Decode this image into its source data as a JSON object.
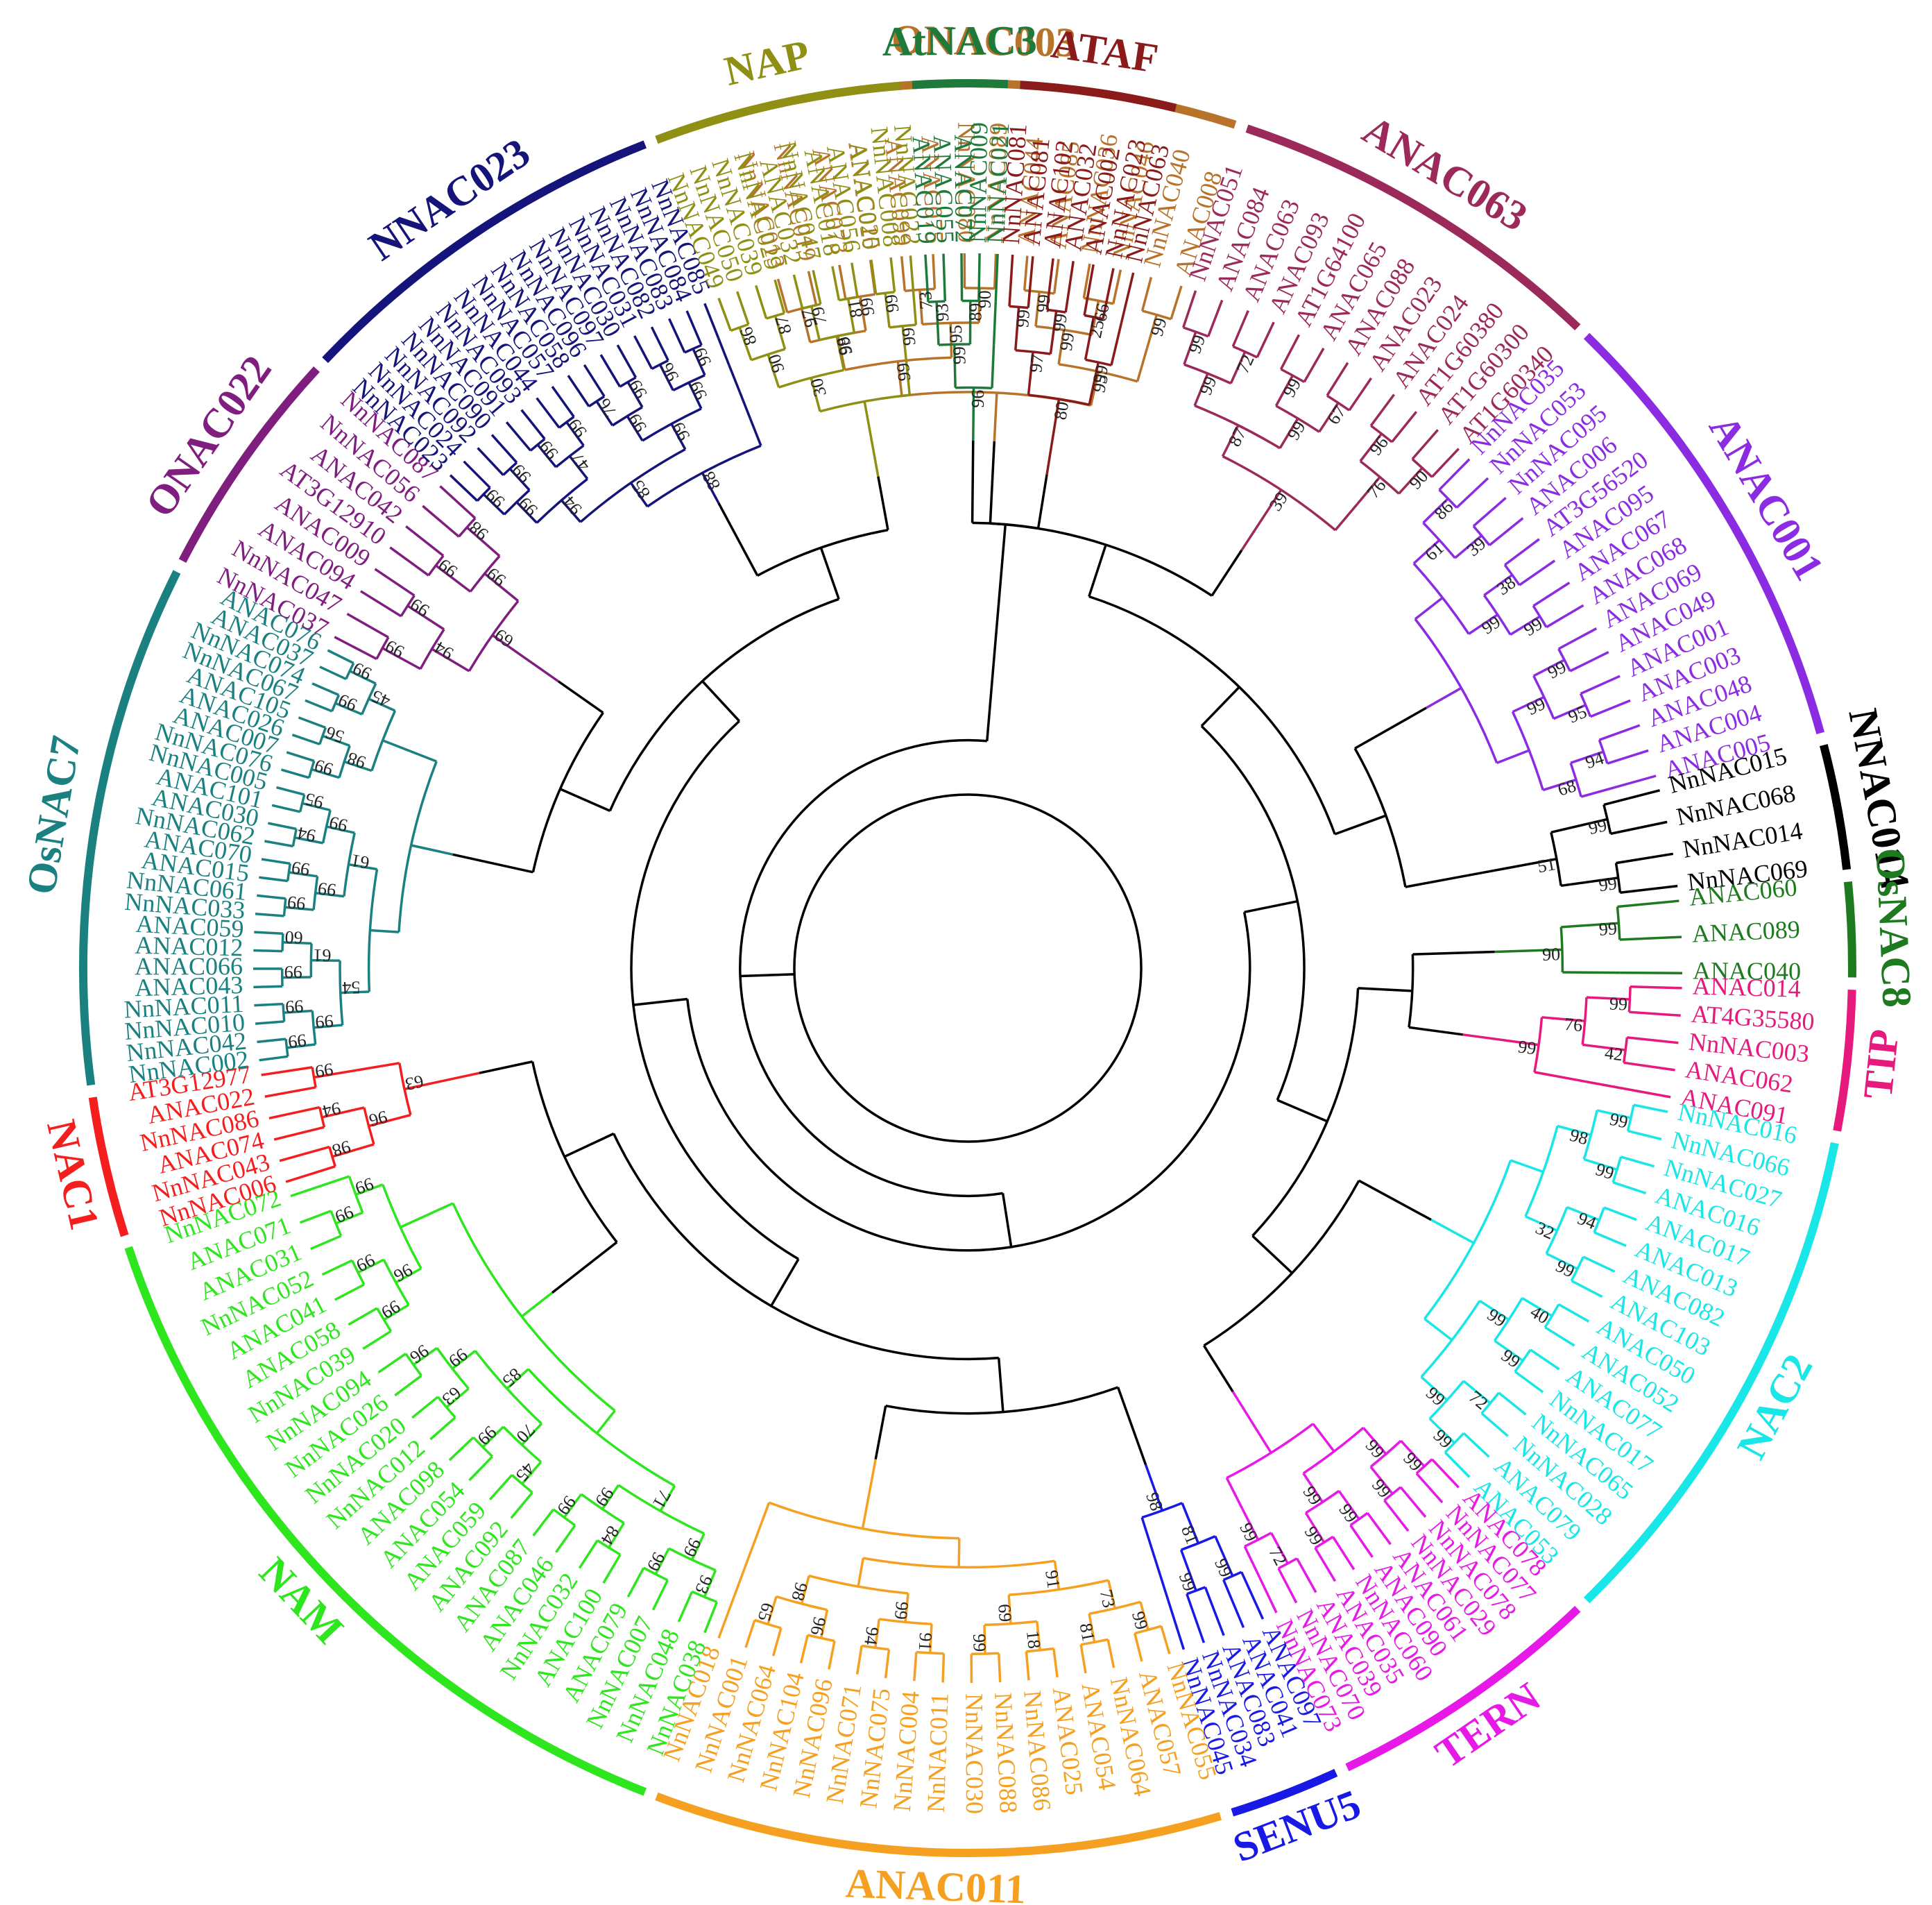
{
  "clades": [
    {
      "name": "ONAC003",
      "color": "#b8732b",
      "start": -16,
      "end": 18,
      "leaves": [
        "NnNAC013",
        "NnNAC019",
        "ANAC073",
        "ANAC010",
        "ANAC099",
        "ANAC075",
        "NnNAC080",
        "NnNAC089",
        "ANAC044",
        "ANAC085",
        "NnNAC036",
        "NnNAC046",
        "NnNAC040",
        "ANAC008"
      ],
      "boots": [
        "97",
        "99",
        "73",
        "90",
        "99",
        "66",
        "99",
        "99",
        "95",
        "99",
        "99",
        "95"
      ]
    },
    {
      "name": "ANAC063",
      "color": "#9b2a5a",
      "start": 18,
      "end": 44,
      "leaves": [
        "NnNAC051",
        "ANAC084",
        "ANAC063",
        "ANAC093",
        "AT1G64100",
        "ANAC065",
        "ANAC088",
        "ANAC023",
        "ANAC024",
        "AT1G60380",
        "AT1G60300",
        "AT1G60340"
      ],
      "boots": [
        "99",
        "72",
        "99",
        "67",
        "96",
        "90",
        "99",
        "99",
        "76",
        "87",
        "39"
      ]
    },
    {
      "name": "ANAC001",
      "color": "#8b2be2",
      "start": 44,
      "end": 75,
      "leaves": [
        "NnNAC035",
        "NnNAC053",
        "NnNAC095",
        "ANAC006",
        "AT3G56520",
        "ANAC095",
        "ANAC067",
        "ANAC068",
        "ANAC069",
        "ANAC049",
        "ANAC001",
        "ANAC003",
        "ANAC048",
        "ANAC004",
        "ANAC005"
      ],
      "boots": [
        "86",
        "39",
        "38",
        "99",
        "99",
        "95",
        "94",
        "61",
        "99",
        "99",
        "68"
      ]
    },
    {
      "name": "NNAC014",
      "color": "#000000",
      "start": 75,
      "end": 84,
      "leaves": [
        "NnNAC015",
        "NnNAC068",
        "NnNAC014",
        "NnNAC069"
      ],
      "boots": [
        "99",
        "99",
        "51"
      ]
    },
    {
      "name": "OsNAC8",
      "color": "#1e7a1e",
      "start": 84,
      "end": 91,
      "leaves": [
        "ANAC060",
        "ANAC089",
        "ANAC040"
      ],
      "boots": [
        "99",
        "90"
      ]
    },
    {
      "name": "TIP",
      "color": "#e6197d",
      "start": 91,
      "end": 101,
      "leaves": [
        "ANAC014",
        "AT4G35580",
        "NnNAC003",
        "ANAC062",
        "ANAC091"
      ],
      "boots": [
        "99",
        "42",
        "76",
        "99"
      ]
    },
    {
      "name": "NAC2",
      "color": "#19e6e6",
      "start": 101,
      "end": 136,
      "leaves": [
        "NnNAC016",
        "NnNAC066",
        "NnNAC027",
        "ANAC016",
        "ANAC017",
        "ANAC013",
        "ANAC082",
        "ANAC103",
        "ANAC050",
        "ANAC052",
        "ANAC077",
        "NnNAC017",
        "NnNAC065",
        "NnNAC028",
        "ANAC079",
        "ANAC053"
      ],
      "boots": [
        "99",
        "99",
        "94",
        "99",
        "40",
        "99",
        "72",
        "99",
        "98",
        "32",
        "99",
        "99"
      ]
    },
    {
      "name": "TERN",
      "color": "#e619e6",
      "start": 136,
      "end": 155,
      "leaves": [
        "ANAC078",
        "NnNAC077",
        "NnNAC078",
        "NnNAC029",
        "ANAC061",
        "ANAC090",
        "NnNAC060",
        "ANAC035",
        "ANAC039",
        "NnNAC070",
        "NnNAC073"
      ],
      "boots": [
        "99",
        "99",
        "99",
        "99",
        "72",
        "99",
        "99",
        "99"
      ]
    },
    {
      "name": "SENU5",
      "color": "#1919e6",
      "start": 155,
      "end": 163,
      "leaves": [
        "ANAC097",
        "ANAC041",
        "ANAC083",
        "NnNAC034",
        "NnNAC045"
      ],
      "boots": [
        "99",
        "99",
        "81",
        "98"
      ]
    },
    {
      "name": "ANAC011",
      "color": "#f5a020",
      "start": 163,
      "end": 201,
      "leaves": [
        "NnNAC055",
        "ANAC057",
        "NnNAC064",
        "ANAC054",
        "ANAC025",
        "NnNAC086",
        "NnNAC088",
        "NnNAC030",
        "NnNAC011",
        "NnNAC004",
        "NnNAC075",
        "NnNAC071",
        "NnNAC096",
        "NnNAC104",
        "NnNAC064",
        "NnNAC001",
        "NnNAC018"
      ],
      "boots": [
        "99",
        "81",
        "18",
        "99",
        "91",
        "94",
        "96",
        "65",
        "73",
        "69",
        "99",
        "98",
        "91"
      ]
    },
    {
      "name": "NAM",
      "color": "#2ee61e",
      "start": 201,
      "end": 252,
      "leaves": [
        "NnNAC038",
        "NnNAC048",
        "NnNAC007",
        "ANAC079",
        "ANAC100",
        "NnNAC032",
        "ANAC046",
        "ANAC087",
        "ANAC092",
        "ANAC059",
        "ANAC054",
        "ANAC098",
        "NnNAC012",
        "NnNAC020",
        "NnNAC026",
        "NnNAC094",
        "NnNAC039",
        "ANAC058",
        "ANAC041",
        "NnNAC052",
        "ANAC031",
        "ANAC071",
        "NnNAC072"
      ],
      "boots": [
        "93",
        "99",
        "84",
        "99",
        "45",
        "99",
        "63",
        "96",
        "99",
        "99",
        "99",
        "99",
        "99",
        "70",
        "99",
        "96",
        "99",
        "71",
        "85"
      ]
    },
    {
      "name": "NAC1",
      "color": "#f51e1e",
      "start": 252,
      "end": 262,
      "leaves": [
        "NnNAC006",
        "NnNAC043",
        "ANAC074",
        "NnNAC086",
        "ANAC022",
        "AT3G12977"
      ],
      "boots": [
        "98",
        "94",
        "99",
        "96",
        "63"
      ]
    },
    {
      "name": "OsNAC7",
      "color": "#1a8080",
      "start": 262,
      "end": 297,
      "leaves": [
        "NnNAC002",
        "NnNAC042",
        "NnNAC010",
        "NnNAC011",
        "ANAC043",
        "ANAC066",
        "ANAC012",
        "ANAC059",
        "NnNAC033",
        "NnNAC061",
        "ANAC015",
        "ANAC070",
        "NnNAC062",
        "ANAC030",
        "ANAC101",
        "NnNAC005",
        "NnNAC076",
        "ANAC007",
        "ANAC026",
        "ANAC105",
        "NnNAC067",
        "NnNAC074",
        "ANAC037",
        "ANAC076"
      ],
      "boots": [
        "99",
        "99",
        "99",
        "60",
        "99",
        "99",
        "94",
        "95",
        "99",
        "56",
        "99",
        "99",
        "99",
        "61",
        "99",
        "99",
        "98",
        "45",
        "54",
        "61"
      ]
    },
    {
      "name": "ONAC022",
      "color": "#801e80",
      "start": 297,
      "end": 313,
      "leaves": [
        "NnNAC037",
        "NnNAC047",
        "ANAC094",
        "ANAC009",
        "AT3G12910",
        "ANAC042",
        "NnNAC056",
        "NnNAC087"
      ],
      "boots": [
        "99",
        "99",
        "99",
        "98",
        "94",
        "99",
        "69"
      ]
    },
    {
      "name": "NNAC023",
      "color": "#14147a",
      "start": 313,
      "end": 339,
      "leaves": [
        "NnNAC023",
        "NnNAC024",
        "NnNAC092",
        "NnNAC090",
        "NnNAC091",
        "NnNAC093",
        "NnNAC044",
        "NnNAC057",
        "NnNAC058",
        "NnNAC096",
        "NnNAC097",
        "NnNAC030",
        "NnNAC031",
        "NnNAC082",
        "NnNAC083",
        "NnNAC084",
        "NnNAC085"
      ],
      "boots": [
        "99",
        "99",
        "99",
        "99",
        "76",
        "99",
        "96",
        "99",
        "99",
        "47",
        "99",
        "99",
        "94",
        "99",
        "85",
        "88"
      ]
    },
    {
      "name": "NAP",
      "color": "#8f8f14",
      "start": 339,
      "end": 356,
      "leaves": [
        "NnNAC049",
        "NnNAC050",
        "NnNAC039",
        "NnNAC029",
        "ANAC032",
        "NnNAC047",
        "ANAC018",
        "ANAC056",
        "ANAC025",
        "NnNAC008",
        "NnNAC022"
      ],
      "boots": [
        "86",
        "87",
        "79",
        "81",
        "99",
        "90",
        "98",
        "99",
        "30"
      ]
    },
    {
      "name": "AtNAC3",
      "color": "#1e7a3a",
      "start": 356,
      "end": 363,
      "leaves": [
        "ANAC019",
        "ANAC055",
        "ANAC072",
        "NnNAC009",
        "NnNAC021"
      ],
      "boots": [
        "93",
        "89",
        "99",
        "96"
      ]
    },
    {
      "name": "ATAF",
      "color": "#8b1a1a",
      "start": 363,
      "end": 374,
      "leaves": [
        "NnNAC081",
        "ANAC081",
        "ANAC102",
        "ANAC032",
        "ANAC002",
        "NnNAC023",
        "NnNAC063"
      ],
      "boots": [
        "99",
        "99",
        "25",
        "97",
        "99",
        "80"
      ]
    }
  ]
}
